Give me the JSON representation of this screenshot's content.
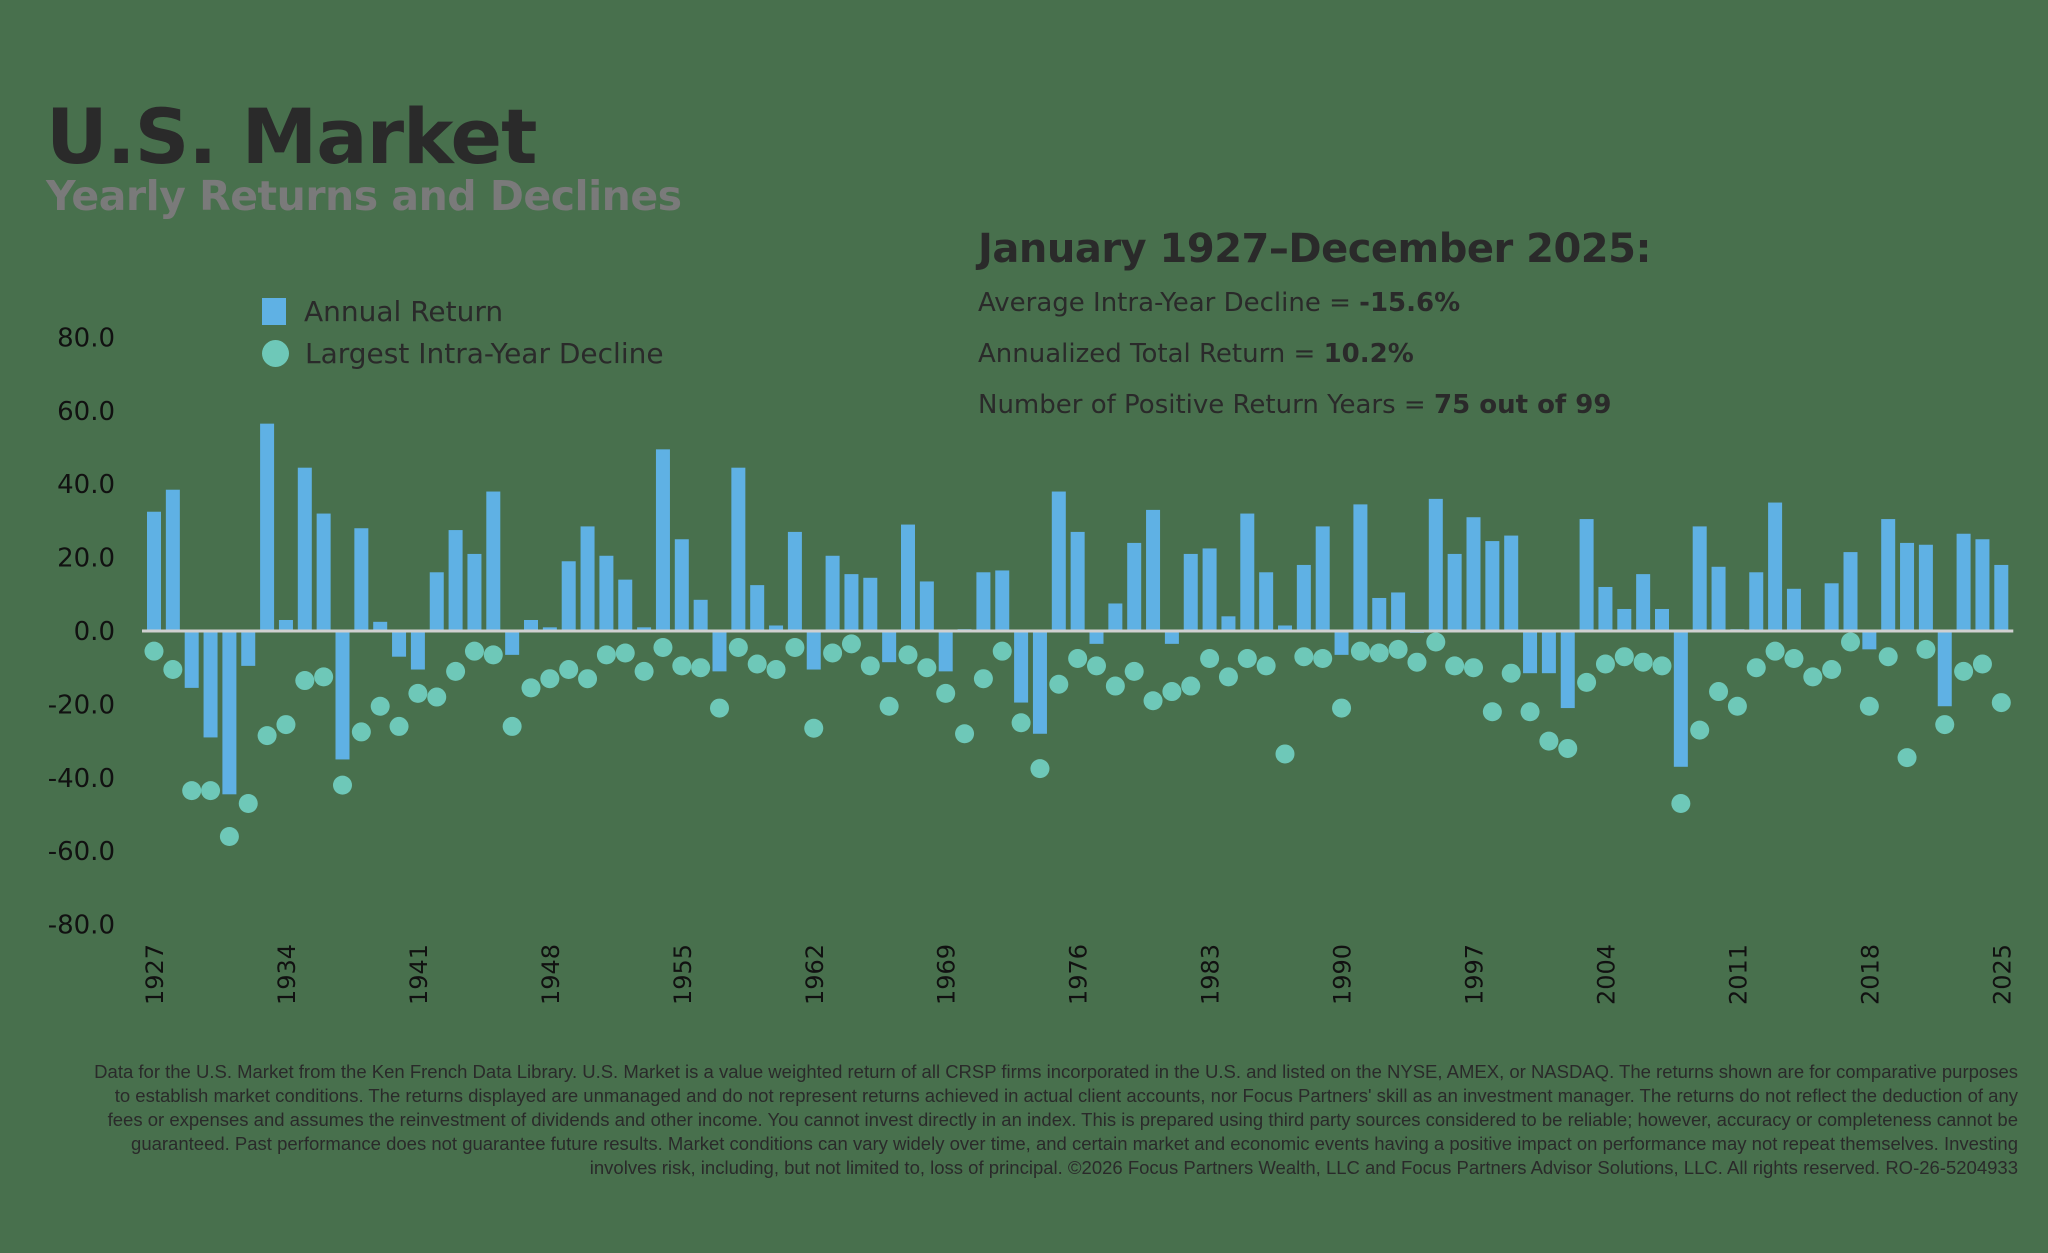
{
  "header": {
    "title": "U.S. Market",
    "subtitle": "Yearly Returns and Declines"
  },
  "legend": {
    "items": [
      {
        "label": "Annual Return",
        "shape": "square",
        "color": "#5fb1e4"
      },
      {
        "label": "Largest Intra-Year Decline",
        "shape": "circle",
        "color": "#6ec8b8"
      }
    ]
  },
  "stats": {
    "heading": "January 1927–December 2025:",
    "lines": [
      {
        "label": "Average Intra-Year Decline = ",
        "value": "-15.6%"
      },
      {
        "label": "Annualized Total Return = ",
        "value": "10.2%"
      },
      {
        "label": "Number of Positive Return Years = ",
        "value": "75 out of 99"
      }
    ]
  },
  "colors": {
    "background": "#48704d",
    "bar": "#5fb1e4",
    "dot": "#6ec8b8",
    "zero_line": "#d0d0d0"
  },
  "chart_data": {
    "type": "bar",
    "title": "U.S. Market — Yearly Returns and Declines",
    "xlabel": "",
    "ylabel": "",
    "ylim": [
      -80,
      80
    ],
    "yticks": [
      "80.0",
      "60.0",
      "40.0",
      "20.0",
      "0.0",
      "-20.0",
      "-40.0",
      "-60.0",
      "-80.0"
    ],
    "xtick_labels": [
      "1927",
      "1934",
      "1941",
      "1948",
      "1955",
      "1962",
      "1969",
      "1976",
      "1983",
      "1990",
      "1997",
      "2004",
      "2011",
      "2018",
      "2025"
    ],
    "grid": false,
    "legend_position": "top-left",
    "categories": [
      1927,
      1928,
      1929,
      1930,
      1931,
      1932,
      1933,
      1934,
      1935,
      1936,
      1937,
      1938,
      1939,
      1940,
      1941,
      1942,
      1943,
      1944,
      1945,
      1946,
      1947,
      1948,
      1949,
      1950,
      1951,
      1952,
      1953,
      1954,
      1955,
      1956,
      1957,
      1958,
      1959,
      1960,
      1961,
      1962,
      1963,
      1964,
      1965,
      1966,
      1967,
      1968,
      1969,
      1970,
      1971,
      1972,
      1973,
      1974,
      1975,
      1976,
      1977,
      1978,
      1979,
      1980,
      1981,
      1982,
      1983,
      1984,
      1985,
      1986,
      1987,
      1988,
      1989,
      1990,
      1991,
      1992,
      1993,
      1994,
      1995,
      1996,
      1997,
      1998,
      1999,
      2000,
      2001,
      2002,
      2003,
      2004,
      2005,
      2006,
      2007,
      2008,
      2009,
      2010,
      2011,
      2012,
      2013,
      2014,
      2015,
      2016,
      2017,
      2018,
      2019,
      2020,
      2021,
      2022,
      2023,
      2024,
      2025
    ],
    "series": [
      {
        "name": "Annual Return",
        "type": "bar",
        "values": [
          32.5,
          38.5,
          -15.5,
          -29,
          -44.5,
          -9.5,
          56.5,
          3,
          44.5,
          32,
          -35,
          28,
          2.5,
          -7,
          -10.5,
          16,
          27.5,
          21,
          38,
          -6.5,
          3,
          1,
          19,
          28.5,
          20.5,
          14,
          1,
          49.5,
          25,
          8.5,
          -11,
          44.5,
          12.5,
          1.5,
          27,
          -10.5,
          20.5,
          15.5,
          14.5,
          -8.5,
          29,
          13.5,
          -11,
          0.5,
          16,
          16.5,
          -19.5,
          -28,
          38,
          27,
          -3.5,
          7.5,
          24,
          33,
          -3.5,
          21,
          22.5,
          4,
          32,
          16,
          1.5,
          18,
          28.5,
          -6.5,
          34.5,
          9,
          10.5,
          -0.5,
          36,
          21,
          31,
          24.5,
          26,
          -11.5,
          -11.5,
          -21,
          30.5,
          12,
          6,
          15.5,
          6,
          -37,
          28.5,
          17.5,
          0.5,
          16,
          35,
          11.5,
          0,
          13,
          21.5,
          -5,
          30.5,
          24,
          23.5,
          -20.5,
          26.5,
          25,
          18
        ]
      },
      {
        "name": "Largest Intra-Year Decline",
        "type": "scatter",
        "values": [
          -5.5,
          -10.5,
          -43.5,
          -43.5,
          -56,
          -47,
          -28.5,
          -25.5,
          -13.5,
          -12.5,
          -42,
          -27.5,
          -20.5,
          -26,
          -17,
          -18,
          -11,
          -5.5,
          -6.5,
          -26,
          -15.5,
          -13,
          -10.5,
          -13,
          -6.5,
          -6,
          -11,
          -4.5,
          -9.5,
          -10,
          -21,
          -4.5,
          -9,
          -10.5,
          -4.5,
          -26.5,
          -6,
          -3.5,
          -9.5,
          -20.5,
          -6.5,
          -10,
          -17,
          -28,
          -13,
          -5.5,
          -25,
          -37.5,
          -14.5,
          -7.5,
          -9.5,
          -15,
          -11,
          -19,
          -16.5,
          -15,
          -7.5,
          -12.5,
          -7.5,
          -9.5,
          -33.5,
          -7,
          -7.5,
          -21,
          -5.5,
          -6,
          -5,
          -8.5,
          -3,
          -9.5,
          -10,
          -22,
          -11.5,
          -22,
          -30,
          -32,
          -14,
          -9,
          -7,
          -8.5,
          -9.5,
          -47,
          -27,
          -16.5,
          -20.5,
          -10,
          -5.5,
          -7.5,
          -12.5,
          -10.5,
          -3,
          -20.5,
          -7,
          -34.5,
          -5,
          -25.5,
          -11,
          -9,
          -19.5
        ]
      }
    ]
  },
  "footer": {
    "disclaimer": "Data for the U.S. Market from the Ken French Data Library. U.S. Market is a value weighted return of all CRSP firms incorporated in the U.S. and listed on the NYSE, AMEX, or NASDAQ. The returns shown are for comparative purposes to establish market conditions. The returns displayed are unmanaged and do not represent returns achieved in actual client accounts, nor Focus Partners' skill as an investment manager. The returns do not reflect the deduction of any fees or expenses and assumes the reinvestment of dividends and other income. You cannot invest directly in an index. This is prepared using third party sources considered to be reliable; however, accuracy or completeness cannot be guaranteed. Past performance does not guarantee future results. Market conditions can vary widely over time, and certain market and economic events having a positive impact on performance may not repeat themselves. Investing involves risk, including, but not limited to, loss of principal. ©2026 Focus Partners Wealth, LLC and Focus Partners Advisor Solutions, LLC. All rights reserved. RO-26-5204933"
  }
}
